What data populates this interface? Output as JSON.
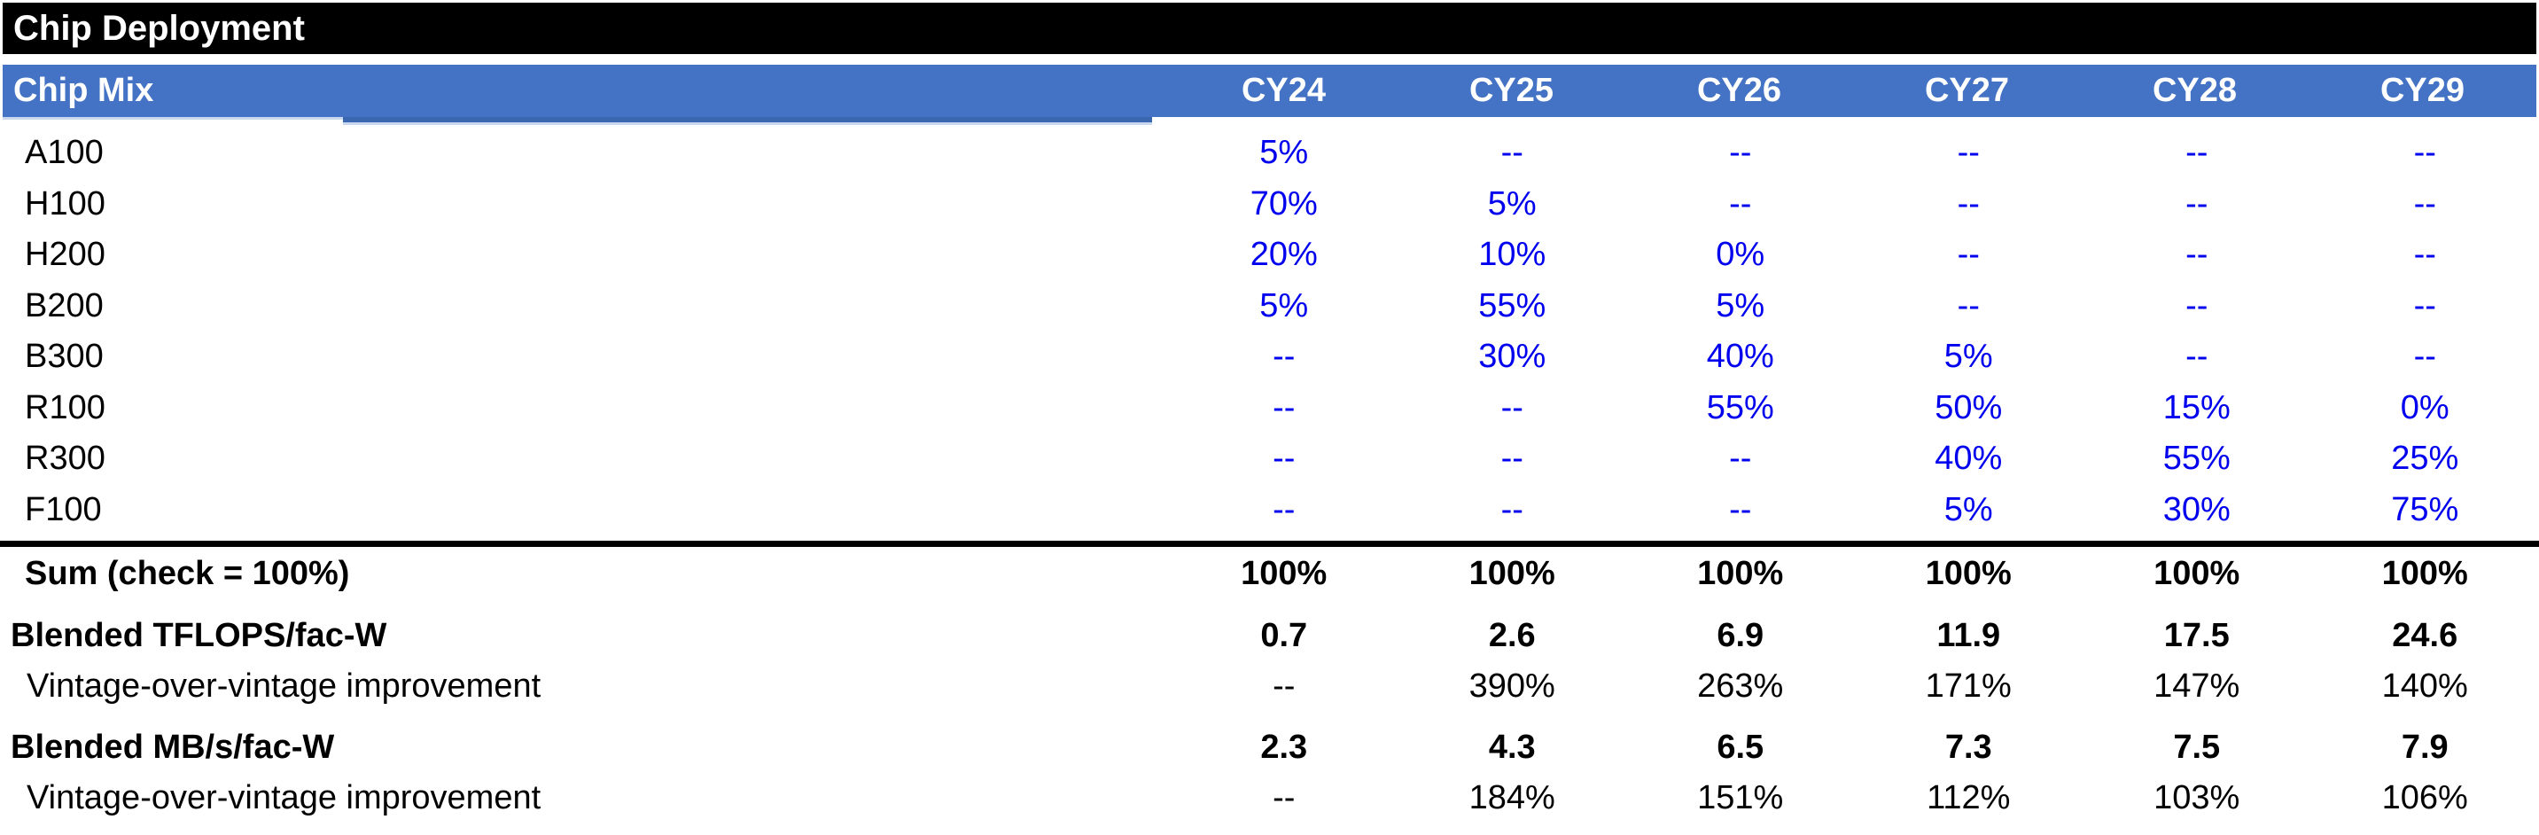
{
  "title": "Chip Deployment",
  "table": {
    "corner_label": "Chip Mix",
    "columns": [
      "CY24",
      "CY25",
      "CY26",
      "CY27",
      "CY28",
      "CY29"
    ],
    "chip_rows": [
      {
        "label": "A100",
        "values": [
          "5%",
          "--",
          "--",
          "--",
          "--",
          "--"
        ]
      },
      {
        "label": "H100",
        "values": [
          "70%",
          "5%",
          "--",
          "--",
          "--",
          "--"
        ]
      },
      {
        "label": "H200",
        "values": [
          "20%",
          "10%",
          "0%",
          "--",
          "--",
          "--"
        ]
      },
      {
        "label": "B200",
        "values": [
          "5%",
          "55%",
          "5%",
          "--",
          "--",
          "--"
        ]
      },
      {
        "label": "B300",
        "values": [
          "--",
          "30%",
          "40%",
          "5%",
          "--",
          "--"
        ]
      },
      {
        "label": "R100",
        "values": [
          "--",
          "--",
          "55%",
          "50%",
          "15%",
          "0%"
        ]
      },
      {
        "label": "R300",
        "values": [
          "--",
          "--",
          "--",
          "40%",
          "55%",
          "25%"
        ]
      },
      {
        "label": "F100",
        "values": [
          "--",
          "--",
          "--",
          "5%",
          "30%",
          "75%"
        ]
      }
    ],
    "sum_row": {
      "label": "Sum (check = 100%)",
      "values": [
        "100%",
        "100%",
        "100%",
        "100%",
        "100%",
        "100%"
      ]
    },
    "metric_rows": [
      {
        "label": "Blended TFLOPS/fac-W",
        "values": [
          "0.7",
          "2.6",
          "6.9",
          "11.9",
          "17.5",
          "24.6"
        ]
      },
      {
        "label": "Vintage-over-vintage improvement",
        "values": [
          "--",
          "390%",
          "263%",
          "171%",
          "147%",
          "140%"
        ]
      },
      {
        "label": "Blended MB/s/fac-W",
        "values": [
          "2.3",
          "4.3",
          "6.5",
          "7.3",
          "7.5",
          "7.9"
        ]
      },
      {
        "label": "Vintage-over-vintage improvement",
        "values": [
          "--",
          "184%",
          "151%",
          "112%",
          "103%",
          "106%"
        ]
      }
    ]
  },
  "colors": {
    "title_bar_bg": "#000000",
    "title_bar_text": "#ffffff",
    "header_band_bg": "#4472C4",
    "header_band_text": "#ffffff",
    "input_cell_text": "#0000EE",
    "computed_cell_text": "#000000",
    "double_rule": "#000000"
  }
}
